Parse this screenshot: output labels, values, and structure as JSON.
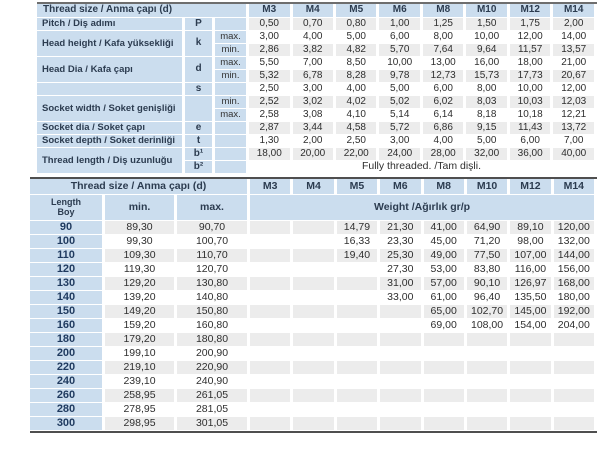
{
  "thread_columns": [
    "M3",
    "M4",
    "M5",
    "M6",
    "M8",
    "M10",
    "M12",
    "M14"
  ],
  "colors": {
    "header_blue": "#cbddee",
    "stripe_gray": "#ececec",
    "border_dark": "#4f4f4f"
  },
  "table1": {
    "title": "Thread size / Anma çapı (d)",
    "groups": [
      {
        "label": "Pitch / Diş adımı",
        "sym": "P",
        "rows": [
          {
            "tol": "",
            "values": [
              "0,50",
              "0,70",
              "0,80",
              "1,00",
              "1,25",
              "1,50",
              "1,75",
              "2,00"
            ]
          }
        ]
      },
      {
        "label": "Head height / Kafa yüksekliği",
        "sym": "k",
        "rows": [
          {
            "tol": "max.",
            "values": [
              "3,00",
              "4,00",
              "5,00",
              "6,00",
              "8,00",
              "10,00",
              "12,00",
              "14,00"
            ]
          },
          {
            "tol": "min.",
            "values": [
              "2,86",
              "3,82",
              "4,82",
              "5,70",
              "7,64",
              "9,64",
              "11,57",
              "13,57"
            ]
          }
        ]
      },
      {
        "label": "Head Dia / Kafa çapı",
        "sym": "d",
        "rows": [
          {
            "tol": "max.",
            "values": [
              "5,50",
              "7,00",
              "8,50",
              "10,00",
              "13,00",
              "16,00",
              "18,00",
              "21,00"
            ]
          },
          {
            "tol": "min.",
            "values": [
              "5,32",
              "6,78",
              "8,28",
              "9,78",
              "12,73",
              "15,73",
              "17,73",
              "20,67"
            ]
          }
        ]
      },
      {
        "label": "",
        "sym": "s",
        "rows": [
          {
            "tol": "",
            "values": [
              "2,50",
              "3,00",
              "4,00",
              "5,00",
              "6,00",
              "8,00",
              "10,00",
              "12,00"
            ]
          }
        ]
      },
      {
        "label": "Socket width / Soket genişliği",
        "sym": "",
        "rows": [
          {
            "tol": "min.",
            "values": [
              "2,52",
              "3,02",
              "4,02",
              "5,02",
              "6,02",
              "8,03",
              "10,03",
              "12,03"
            ]
          },
          {
            "tol": "max.",
            "values": [
              "2,58",
              "3,08",
              "4,10",
              "5,14",
              "6,14",
              "8,18",
              "10,18",
              "12,21"
            ]
          }
        ]
      },
      {
        "label": "Socket dia / Soket çapı",
        "sym": "e",
        "rows": [
          {
            "tol": "",
            "values": [
              "2,87",
              "3,44",
              "4,58",
              "5,72",
              "6,86",
              "9,15",
              "11,43",
              "13,72"
            ]
          }
        ]
      },
      {
        "label": "Socket depth / Soket derinliği",
        "sym": "t",
        "rows": [
          {
            "tol": "",
            "values": [
              "1,30",
              "2,00",
              "2,50",
              "3,00",
              "4,00",
              "5,00",
              "6,00",
              "7,00"
            ]
          }
        ]
      },
      {
        "label": "Thread length / Diş uzunluğu",
        "rows": [
          {
            "sym": "b¹",
            "tol": "",
            "values": [
              "18,00",
              "20,00",
              "22,00",
              "24,00",
              "28,00",
              "32,00",
              "36,00",
              "40,00"
            ]
          },
          {
            "sym": "b²",
            "tol": "",
            "note": "Fully threaded. /Tam dişli."
          }
        ]
      }
    ]
  },
  "table2": {
    "title": "Thread size / Anma çapı (d)",
    "length_label": "Length",
    "length_sublabel": "Boy",
    "min_label": "min.",
    "max_label": "max.",
    "weight_label": "Weight /Ağırlık gr/p",
    "rows": [
      {
        "length": "90",
        "min": "89,30",
        "max": "90,70",
        "weights": [
          "",
          "",
          "14,79",
          "21,30",
          "41,00",
          "64,90",
          "89,10",
          "120,00"
        ]
      },
      {
        "length": "100",
        "min": "99,30",
        "max": "100,70",
        "weights": [
          "",
          "",
          "16,33",
          "23,30",
          "45,00",
          "71,20",
          "98,00",
          "132,00"
        ]
      },
      {
        "length": "110",
        "min": "109,30",
        "max": "110,70",
        "weights": [
          "",
          "",
          "19,40",
          "25,30",
          "49,00",
          "77,50",
          "107,00",
          "144,00"
        ]
      },
      {
        "length": "120",
        "min": "119,30",
        "max": "120,70",
        "weights": [
          "",
          "",
          "",
          "27,30",
          "53,00",
          "83,80",
          "116,00",
          "156,00"
        ]
      },
      {
        "length": "130",
        "min": "129,20",
        "max": "130,80",
        "weights": [
          "",
          "",
          "",
          "31,00",
          "57,00",
          "90,10",
          "126,97",
          "168,00"
        ]
      },
      {
        "length": "140",
        "min": "139,20",
        "max": "140,80",
        "weights": [
          "",
          "",
          "",
          "33,00",
          "61,00",
          "96,40",
          "135,50",
          "180,00"
        ]
      },
      {
        "length": "150",
        "min": "149,20",
        "max": "150,80",
        "weights": [
          "",
          "",
          "",
          "",
          "65,00",
          "102,70",
          "145,00",
          "192,00"
        ]
      },
      {
        "length": "160",
        "min": "159,20",
        "max": "160,80",
        "weights": [
          "",
          "",
          "",
          "",
          "69,00",
          "108,00",
          "154,00",
          "204,00"
        ]
      },
      {
        "length": "180",
        "min": "179,20",
        "max": "180,80",
        "weights": [
          "",
          "",
          "",
          "",
          "",
          "",
          "",
          ""
        ]
      },
      {
        "length": "200",
        "min": "199,10",
        "max": "200,90",
        "weights": [
          "",
          "",
          "",
          "",
          "",
          "",
          "",
          ""
        ]
      },
      {
        "length": "220",
        "min": "219,10",
        "max": "220,90",
        "weights": [
          "",
          "",
          "",
          "",
          "",
          "",
          "",
          ""
        ]
      },
      {
        "length": "240",
        "min": "239,10",
        "max": "240,90",
        "weights": [
          "",
          "",
          "",
          "",
          "",
          "",
          "",
          ""
        ]
      },
      {
        "length": "260",
        "min": "258,95",
        "max": "261,05",
        "weights": [
          "",
          "",
          "",
          "",
          "",
          "",
          "",
          ""
        ]
      },
      {
        "length": "280",
        "min": "278,95",
        "max": "281,05",
        "weights": [
          "",
          "",
          "",
          "",
          "",
          "",
          "",
          ""
        ]
      },
      {
        "length": "300",
        "min": "298,95",
        "max": "301,05",
        "weights": [
          "",
          "",
          "",
          "",
          "",
          "",
          "",
          ""
        ]
      }
    ]
  }
}
